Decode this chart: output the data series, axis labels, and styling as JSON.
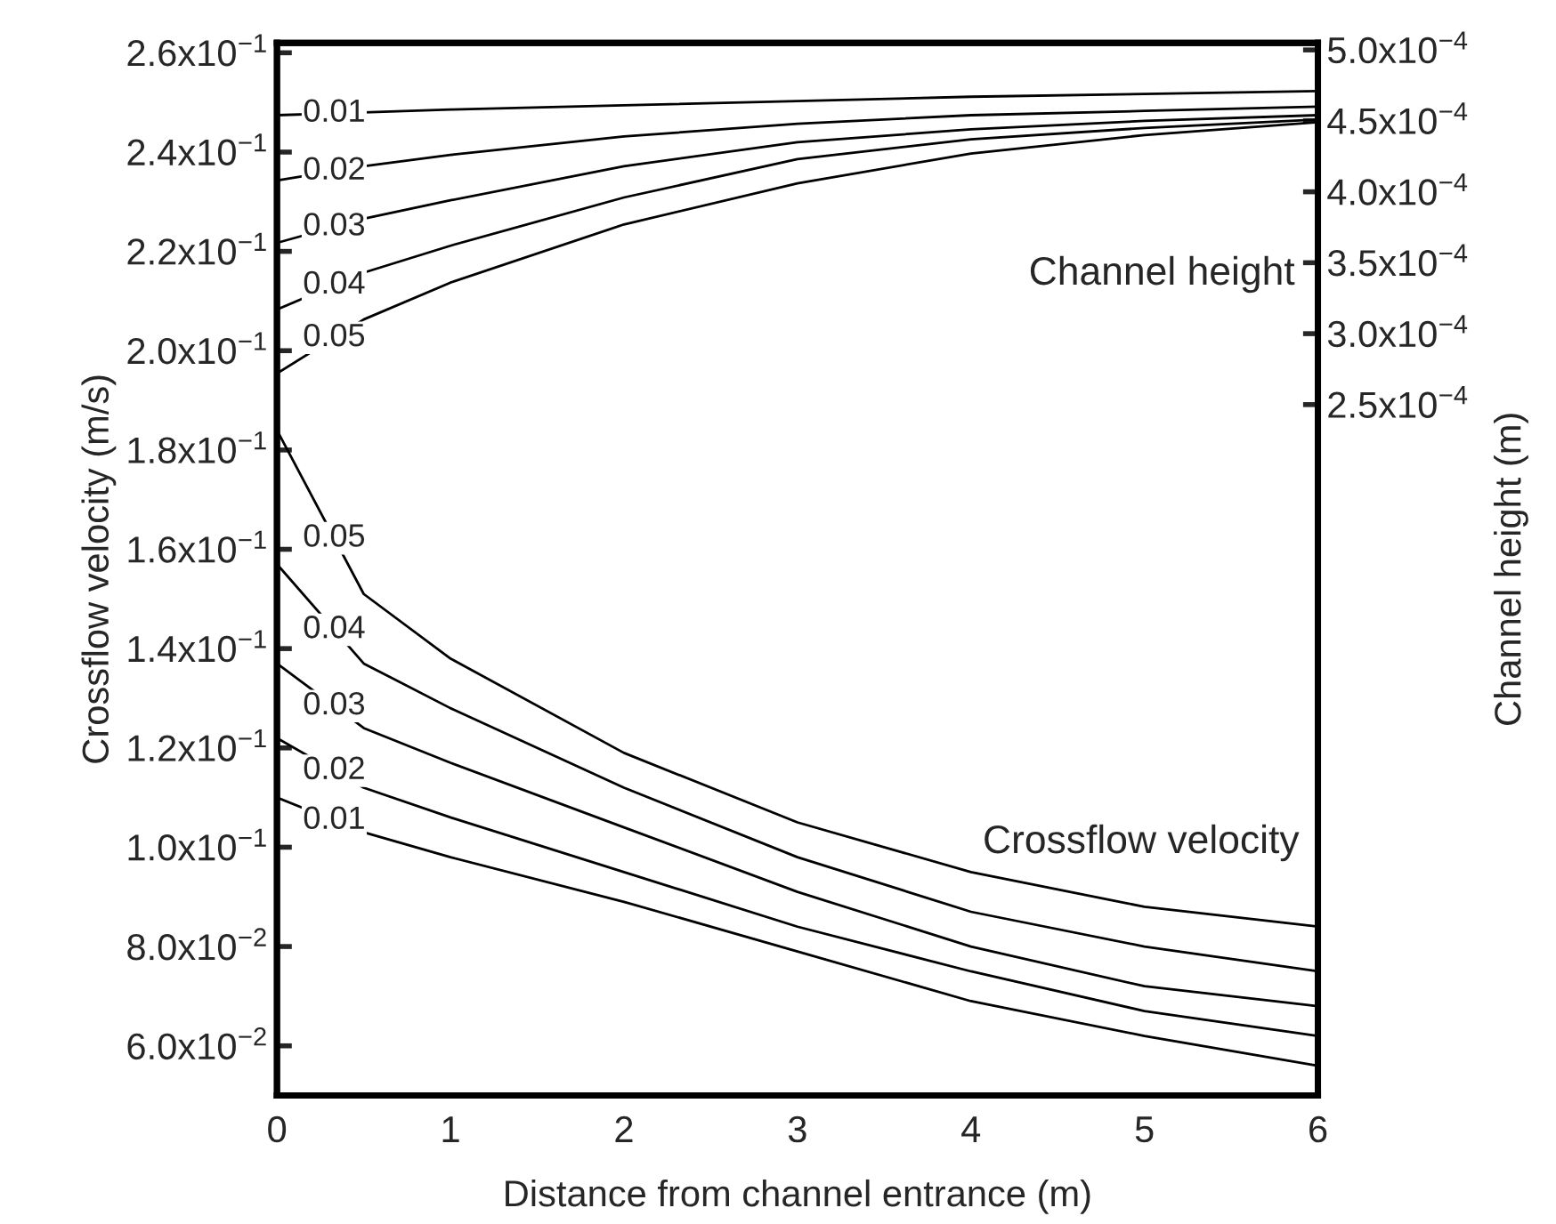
{
  "chart_data": {
    "type": "line",
    "xlabel": "Distance from channel entrance (m)",
    "ylabel": "Crossflow velocity (m/s)",
    "y2label": "Channel height (m)",
    "x": [
      0,
      0.5,
      1,
      2,
      3,
      4,
      5,
      6
    ],
    "series": [
      {
        "name": "0.01",
        "color": "#000000",
        "axis": "y2",
        "values": [
          0.000454,
          0.000456,
          0.000458,
          0.000461,
          0.000464,
          0.000467,
          0.000469,
          0.000471
        ]
      },
      {
        "name": "0.02",
        "color": "#000000",
        "axis": "y2",
        "values": [
          0.000408,
          0.000418,
          0.000426,
          0.000439,
          0.000448,
          0.000454,
          0.000457,
          0.00046
        ]
      },
      {
        "name": "0.03",
        "color": "#000000",
        "axis": "y2",
        "values": [
          0.000364,
          0.000381,
          0.000394,
          0.000418,
          0.000435,
          0.000444,
          0.00045,
          0.000454
        ]
      },
      {
        "name": "0.04",
        "color": "#000000",
        "axis": "y2",
        "values": [
          0.000317,
          0.000343,
          0.000362,
          0.000396,
          0.000423,
          0.000437,
          0.000445,
          0.000451
        ]
      },
      {
        "name": "0.05",
        "color": "#000000",
        "axis": "y2",
        "values": [
          0.000272,
          0.00031,
          0.000336,
          0.000377,
          0.000406,
          0.000427,
          0.00044,
          0.000449
        ]
      },
      {
        "name": "0.05",
        "color": "#000000",
        "values": [
          0.184,
          0.151,
          0.138,
          0.119,
          0.105,
          0.095,
          0.088,
          0.084
        ]
      },
      {
        "name": "0.04",
        "color": "#000000",
        "values": [
          0.157,
          0.137,
          0.128,
          0.112,
          0.098,
          0.087,
          0.08,
          0.075
        ]
      },
      {
        "name": "0.03",
        "color": "#000000",
        "values": [
          0.137,
          0.124,
          0.117,
          0.104,
          0.091,
          0.08,
          0.072,
          0.068
        ]
      },
      {
        "name": "0.02",
        "color": "#000000",
        "values": [
          0.122,
          0.112,
          0.106,
          0.095,
          0.084,
          0.075,
          0.067,
          0.062
        ]
      },
      {
        "name": "0.01",
        "color": "#000000",
        "values": [
          0.11,
          0.103,
          0.098,
          0.089,
          0.079,
          0.069,
          0.062,
          0.056
        ]
      }
    ],
    "xlim": [
      0,
      6
    ],
    "xticks": [
      0,
      1,
      2,
      3,
      4,
      5,
      6
    ],
    "ylim": [
      0.05,
      0.262
    ],
    "yticks": [
      {
        "value": 0.06,
        "label": "6.0x10$^{−2}$"
      },
      {
        "value": 0.08,
        "label": "8.0x10$^{−2}$"
      },
      {
        "value": 0.1,
        "label": "1.0x10$^{−1}$"
      },
      {
        "value": 0.12,
        "label": "1.2x10$^{−1}$"
      },
      {
        "value": 0.14,
        "label": "1.4x10$^{−1}$"
      },
      {
        "value": 0.16,
        "label": "1.6x10$^{−1}$"
      },
      {
        "value": 0.18,
        "label": "1.8x10$^{−1}$"
      },
      {
        "value": 0.2,
        "label": "2.0x10$^{−1}$"
      },
      {
        "value": 0.22,
        "label": "2.2x10$^{−1}$"
      },
      {
        "value": 0.24,
        "label": "2.4x10$^{−1}$"
      },
      {
        "value": 0.26,
        "label": "2.6x10$^{−1}$"
      }
    ],
    "y2lim": [
      -0.000237,
      0.000505
    ],
    "y2ticks": [
      {
        "value": 0.00025,
        "label": "2.5x10$^{−4}$"
      },
      {
        "value": 0.0003,
        "label": "3.0x10$^{−4}$"
      },
      {
        "value": 0.00035,
        "label": "3.5x10$^{−4}$"
      },
      {
        "value": 0.0004,
        "label": "4.0x10$^{−4}$"
      },
      {
        "value": 0.00045,
        "label": "4.5x10$^{−4}$"
      },
      {
        "value": 0.0005,
        "label": "5.0x10$^{−4}$"
      }
    ],
    "annotations": [
      "Channel height",
      "Crossflow velocity"
    ],
    "grid": false,
    "legend": false,
    "line_style": "solid",
    "marker": "none"
  }
}
